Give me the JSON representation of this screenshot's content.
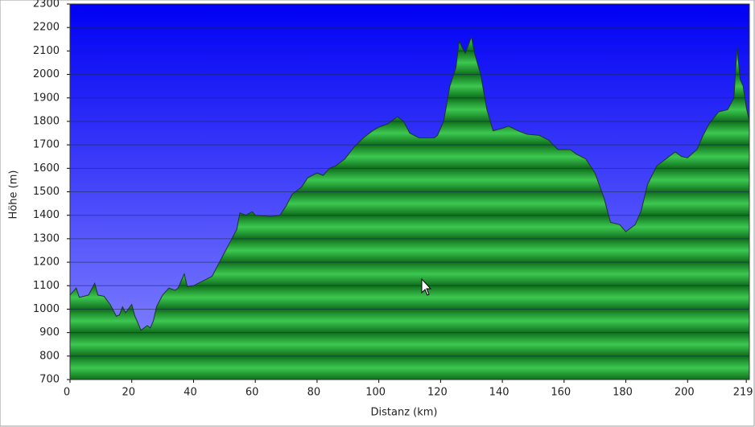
{
  "chart_data": {
    "type": "area",
    "xlabel": "Distanz   (km)",
    "ylabel": "Höhe (m)",
    "color": "#22a83a",
    "xlim": [
      0,
      220
    ],
    "ylim": [
      700,
      2300
    ],
    "xticks": [
      0,
      20,
      40,
      60,
      80,
      100,
      120,
      140,
      160,
      180,
      200,
      219
    ],
    "yticks": [
      700,
      800,
      900,
      1000,
      1100,
      1200,
      1300,
      1400,
      1500,
      1600,
      1700,
      1800,
      1900,
      2000,
      2100,
      2200,
      2300
    ],
    "grid": true,
    "x": [
      0,
      2,
      3,
      6,
      8,
      9,
      11,
      13,
      15,
      16,
      17,
      18,
      20,
      21,
      23,
      25,
      26,
      27,
      28,
      30,
      32,
      34,
      35,
      37,
      38,
      40,
      43,
      46,
      48,
      50,
      52,
      54,
      55,
      57,
      59,
      60,
      65,
      68,
      70,
      72,
      75,
      77,
      80,
      82,
      84,
      86,
      89,
      92,
      95,
      98,
      100,
      103,
      106,
      108,
      110,
      113,
      116,
      118,
      119,
      121,
      123,
      125,
      126,
      128,
      130,
      131,
      133,
      135,
      137,
      140,
      142,
      145,
      148,
      152,
      155,
      158,
      162,
      164,
      167,
      170,
      173,
      175,
      178,
      180,
      183,
      185,
      187,
      190,
      193,
      196,
      198,
      200,
      203,
      205,
      207,
      210,
      213,
      215,
      216,
      217,
      218,
      219,
      220
    ],
    "values": [
      1060,
      1090,
      1050,
      1060,
      1110,
      1060,
      1055,
      1020,
      970,
      975,
      1010,
      985,
      1020,
      970,
      910,
      930,
      920,
      950,
      1010,
      1060,
      1090,
      1080,
      1090,
      1150,
      1095,
      1100,
      1120,
      1140,
      1190,
      1240,
      1290,
      1340,
      1410,
      1400,
      1415,
      1400,
      1395,
      1400,
      1440,
      1490,
      1520,
      1560,
      1580,
      1570,
      1600,
      1610,
      1640,
      1690,
      1730,
      1760,
      1775,
      1790,
      1820,
      1800,
      1750,
      1730,
      1730,
      1730,
      1740,
      1800,
      1950,
      2030,
      2140,
      2090,
      2160,
      2090,
      2000,
      1850,
      1760,
      1770,
      1780,
      1760,
      1745,
      1740,
      1720,
      1680,
      1680,
      1660,
      1640,
      1580,
      1470,
      1370,
      1360,
      1330,
      1360,
      1420,
      1530,
      1610,
      1640,
      1670,
      1650,
      1645,
      1680,
      1740,
      1790,
      1840,
      1850,
      1900,
      2120,
      1980,
      1950,
      1860,
      1800
    ]
  }
}
